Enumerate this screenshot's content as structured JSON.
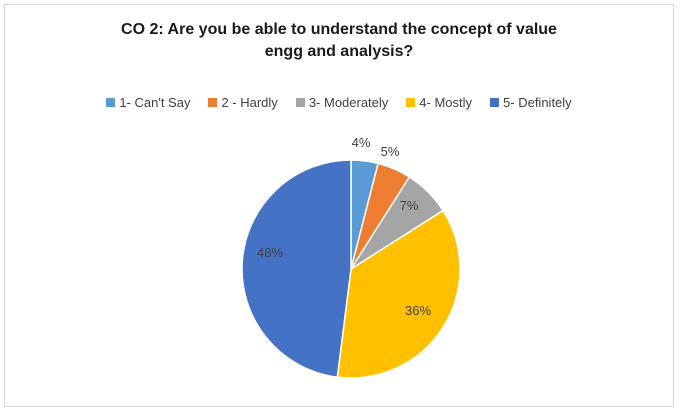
{
  "chart_data": {
    "type": "pie",
    "title_lines": [
      "CO 2: Are you be able to understand the concept of value",
      "engg and analysis?"
    ],
    "categories": [
      "1- Can't Say",
      "2 - Hardly",
      "3- Moderately",
      "4- Mostly",
      "5- Definitely"
    ],
    "values": [
      4,
      5,
      7,
      36,
      48
    ],
    "data_labels": [
      "4%",
      "5%",
      "7%",
      "36%",
      "48%"
    ],
    "colors": [
      "#5b9bd5",
      "#ed7d31",
      "#a5a5a5",
      "#ffc000",
      "#4472c4"
    ],
    "legend_position": "top"
  }
}
